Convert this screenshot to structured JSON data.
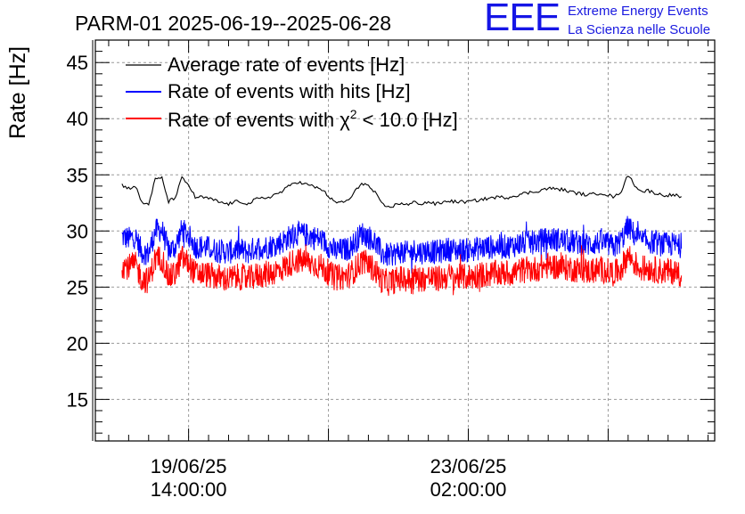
{
  "logo": {
    "letters": "EEE",
    "line1": "Extreme Energy Events",
    "line2": "La Scienza nelle Scuole"
  },
  "chart_data": {
    "type": "line",
    "title": "PARM-01 2025-06-19--2025-06-28",
    "ylabel": "Rate [Hz]",
    "xlabel": "",
    "ylim": [
      11.3,
      47
    ],
    "y_ticks": [
      15,
      20,
      25,
      30,
      35,
      40,
      45
    ],
    "x_ticks": [
      {
        "t": 0,
        "line1": "19/06/25",
        "line2": "14:00:00"
      },
      {
        "t": 84,
        "line1": "23/06/25",
        "line2": "02:00:00"
      }
    ],
    "xlim": [
      -28,
      158
    ],
    "grid": true,
    "legend": "top-left",
    "colors": {
      "avg": "#000000",
      "hits": "#0000ff",
      "chi2": "#ff0000"
    },
    "series": [
      {
        "name": "Average rate of events [Hz]",
        "color": "#000000",
        "x": [
          -20,
          -18,
          -16,
          -14,
          -12,
          -10,
          -8,
          -6,
          -4,
          -2,
          0,
          2,
          4,
          6,
          8,
          10,
          12,
          14,
          16,
          18,
          20,
          24,
          28,
          32,
          36,
          40,
          44,
          48,
          50,
          52,
          54,
          56,
          58,
          60,
          62,
          64,
          66,
          68,
          70,
          72,
          74,
          76,
          78,
          80,
          84,
          88,
          92,
          96,
          100,
          104,
          108,
          112,
          116,
          120,
          124,
          128,
          130,
          132,
          134,
          136,
          138,
          142,
          146,
          148
        ],
        "y": [
          34.1,
          33.8,
          34.0,
          32.5,
          32.4,
          34.6,
          34.7,
          32.6,
          33.0,
          34.7,
          34.1,
          33.0,
          33.0,
          32.9,
          32.7,
          32.5,
          32.4,
          32.6,
          32.6,
          32.4,
          32.8,
          33.0,
          33.5,
          34.4,
          34.1,
          33.7,
          32.5,
          32.7,
          33.5,
          34.3,
          34.0,
          33.4,
          32.4,
          32.1,
          32.3,
          32.5,
          32.3,
          32.6,
          32.4,
          32.6,
          32.4,
          32.5,
          32.7,
          32.6,
          32.6,
          32.8,
          33.0,
          33.0,
          33.3,
          33.5,
          33.8,
          33.7,
          33.4,
          33.2,
          33.4,
          33.0,
          33.6,
          35.0,
          34.1,
          33.5,
          33.6,
          33.2,
          33.2,
          33.0
        ]
      },
      {
        "name": "Rate of events with hits [Hz]",
        "color": "#0000ff",
        "x": [
          -20,
          -18,
          -16,
          -14,
          -12,
          -10,
          -8,
          -6,
          -4,
          -2,
          0,
          2,
          4,
          6,
          8,
          10,
          12,
          14,
          16,
          18,
          20,
          24,
          28,
          32,
          36,
          40,
          44,
          48,
          50,
          52,
          54,
          56,
          58,
          60,
          62,
          64,
          66,
          68,
          70,
          72,
          74,
          76,
          78,
          80,
          84,
          88,
          92,
          96,
          100,
          104,
          108,
          112,
          116,
          120,
          124,
          128,
          130,
          132,
          134,
          136,
          138,
          142,
          146,
          148
        ],
        "y": [
          29.5,
          29.3,
          29.5,
          28.1,
          28.0,
          30.0,
          30.1,
          28.2,
          28.6,
          30.1,
          29.6,
          28.6,
          28.6,
          28.5,
          28.3,
          28.2,
          28.1,
          28.3,
          28.3,
          28.1,
          28.5,
          28.6,
          29.0,
          29.8,
          29.6,
          29.2,
          28.2,
          28.4,
          29.0,
          29.8,
          29.5,
          29.0,
          28.0,
          27.8,
          28.0,
          28.2,
          28.0,
          28.3,
          28.1,
          28.3,
          28.1,
          28.2,
          28.4,
          28.3,
          28.3,
          28.5,
          28.6,
          28.6,
          28.9,
          29.0,
          29.3,
          29.2,
          29.0,
          28.8,
          29.0,
          28.6,
          29.2,
          30.4,
          29.6,
          29.1,
          29.1,
          28.8,
          28.8,
          28.6
        ]
      },
      {
        "name": "Rate of events with χ² < 10.0 [Hz]",
        "color": "#ff0000",
        "x": [
          -20,
          -18,
          -16,
          -14,
          -12,
          -10,
          -8,
          -6,
          -4,
          -2,
          0,
          2,
          4,
          6,
          8,
          10,
          12,
          14,
          16,
          18,
          20,
          24,
          28,
          32,
          36,
          40,
          44,
          48,
          50,
          52,
          54,
          56,
          58,
          60,
          62,
          64,
          66,
          68,
          70,
          72,
          74,
          76,
          78,
          80,
          84,
          88,
          92,
          96,
          100,
          104,
          108,
          112,
          116,
          120,
          124,
          128,
          130,
          132,
          134,
          136,
          138,
          142,
          146,
          148
        ],
        "y": [
          27.0,
          26.8,
          27.0,
          25.7,
          25.6,
          27.5,
          27.6,
          25.8,
          26.2,
          27.6,
          27.1,
          26.2,
          26.2,
          26.1,
          25.9,
          25.8,
          25.7,
          25.9,
          25.9,
          25.7,
          26.0,
          26.2,
          26.6,
          27.4,
          27.2,
          26.8,
          25.8,
          26.0,
          26.6,
          27.3,
          27.0,
          26.5,
          25.6,
          25.4,
          25.6,
          25.8,
          25.6,
          25.9,
          25.7,
          25.9,
          25.7,
          25.8,
          26.0,
          25.9,
          25.9,
          26.1,
          26.2,
          26.2,
          26.5,
          26.6,
          26.9,
          26.8,
          26.6,
          26.4,
          26.6,
          26.2,
          26.7,
          27.9,
          27.1,
          26.6,
          26.7,
          26.4,
          26.4,
          26.2
        ]
      }
    ],
    "noise_amplitude": [
      0.15,
      1.1,
      1.2
    ],
    "legend_labels": {
      "avg": "Average rate of events [Hz]",
      "hits": "Rate of events with hits [Hz]",
      "chi2_pre": "Rate of events with χ",
      "chi2_sup": "2",
      "chi2_post": " < 10.0 [Hz]"
    }
  }
}
